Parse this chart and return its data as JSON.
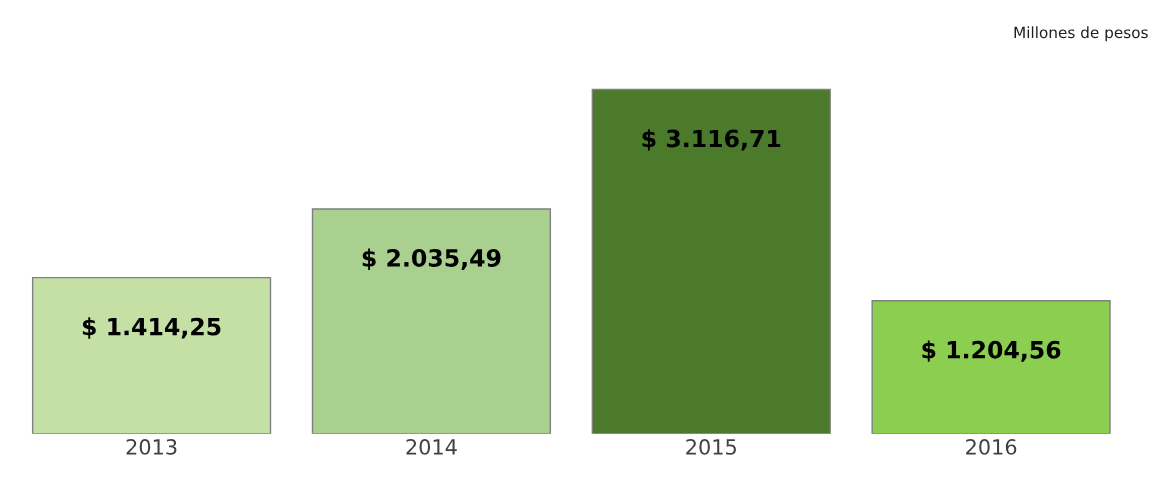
{
  "chart_data": {
    "type": "bar",
    "categories": [
      "2013",
      "2014",
      "2015",
      "2016"
    ],
    "values": [
      1414.25,
      2035.49,
      3116.71,
      1204.56
    ],
    "value_labels": [
      "$ 1.414,25",
      "$ 2.035,49",
      "$ 3.116,71",
      "$ 1.204,56"
    ],
    "colors": [
      "#c5e0a5",
      "#a9d08e",
      "#4a7a2a",
      "#8cce4f"
    ],
    "annotations": [
      "Millones de pesos"
    ],
    "grid": false,
    "legend": false
  }
}
